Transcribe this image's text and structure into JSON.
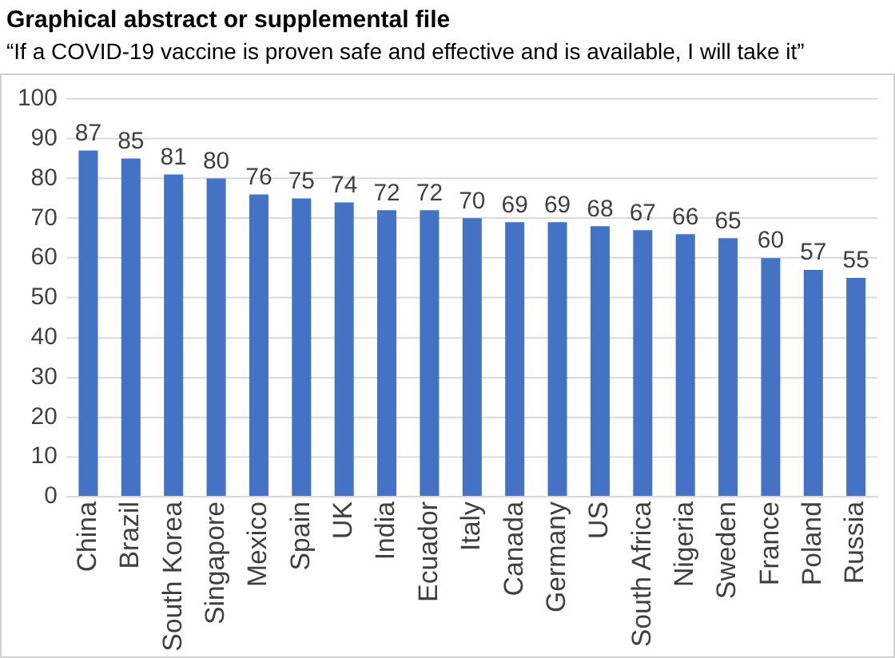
{
  "chart_data": {
    "type": "bar",
    "title": "Graphical abstract or supplemental file",
    "subtitle": "“If a COVID-19 vaccine is proven safe and effective and is available, I will take it”",
    "categories": [
      "China",
      "Brazil",
      "South Korea",
      "Singapore",
      "Mexico",
      "Spain",
      "UK",
      "India",
      "Ecuador",
      "Italy",
      "Canada",
      "Germany",
      "US",
      "South Africa",
      "Nigeria",
      "Sweden",
      "France",
      "Poland",
      "Russia"
    ],
    "values": [
      87,
      85,
      81,
      80,
      76,
      75,
      74,
      72,
      72,
      70,
      69,
      69,
      68,
      67,
      66,
      65,
      60,
      57,
      55
    ],
    "color": "#4472c4",
    "ylim": [
      0,
      100
    ],
    "yticks": [
      0,
      10,
      20,
      30,
      40,
      50,
      60,
      70,
      80,
      90,
      100
    ],
    "grid": "y",
    "data_labels": true
  }
}
